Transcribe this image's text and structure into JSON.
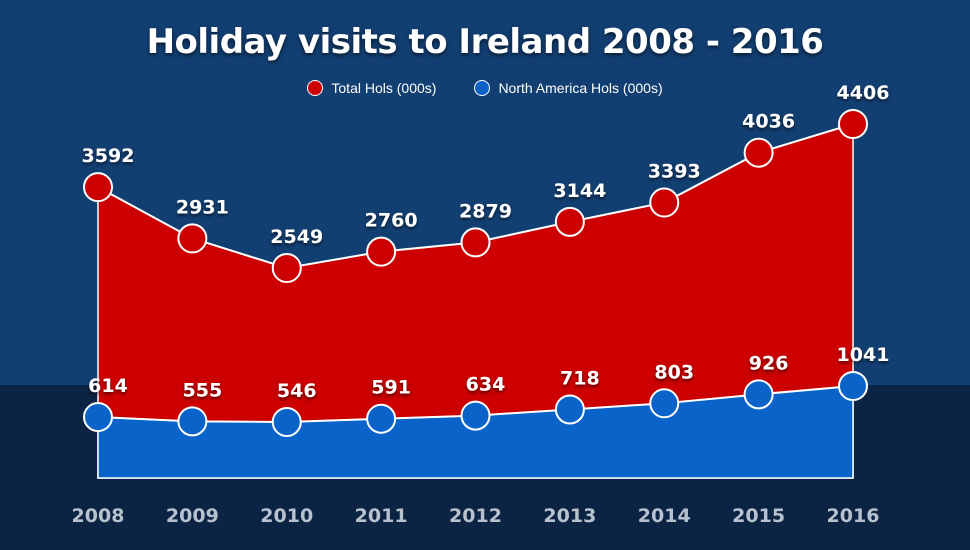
{
  "colors": {
    "total": "#cc0000",
    "north_america": "#0a63c9",
    "point_stroke": "#ffffff",
    "label_text": "#ffffff"
  },
  "chart_data": {
    "type": "area",
    "title": "Holiday visits to Ireland 2008 - 2016",
    "xlabel": "",
    "ylabel": "",
    "categories": [
      "2008",
      "2009",
      "2010",
      "2011",
      "2012",
      "2013",
      "2014",
      "2015",
      "2016"
    ],
    "series": [
      {
        "name": "Total Hols (000s)",
        "values": [
          3592,
          2931,
          2549,
          2760,
          2879,
          3144,
          3393,
          4036,
          4406
        ]
      },
      {
        "name": "North America Hols (000s)",
        "values": [
          614,
          555,
          546,
          591,
          634,
          718,
          803,
          926,
          1041
        ]
      }
    ],
    "legend": "top-center",
    "grid": false
  }
}
